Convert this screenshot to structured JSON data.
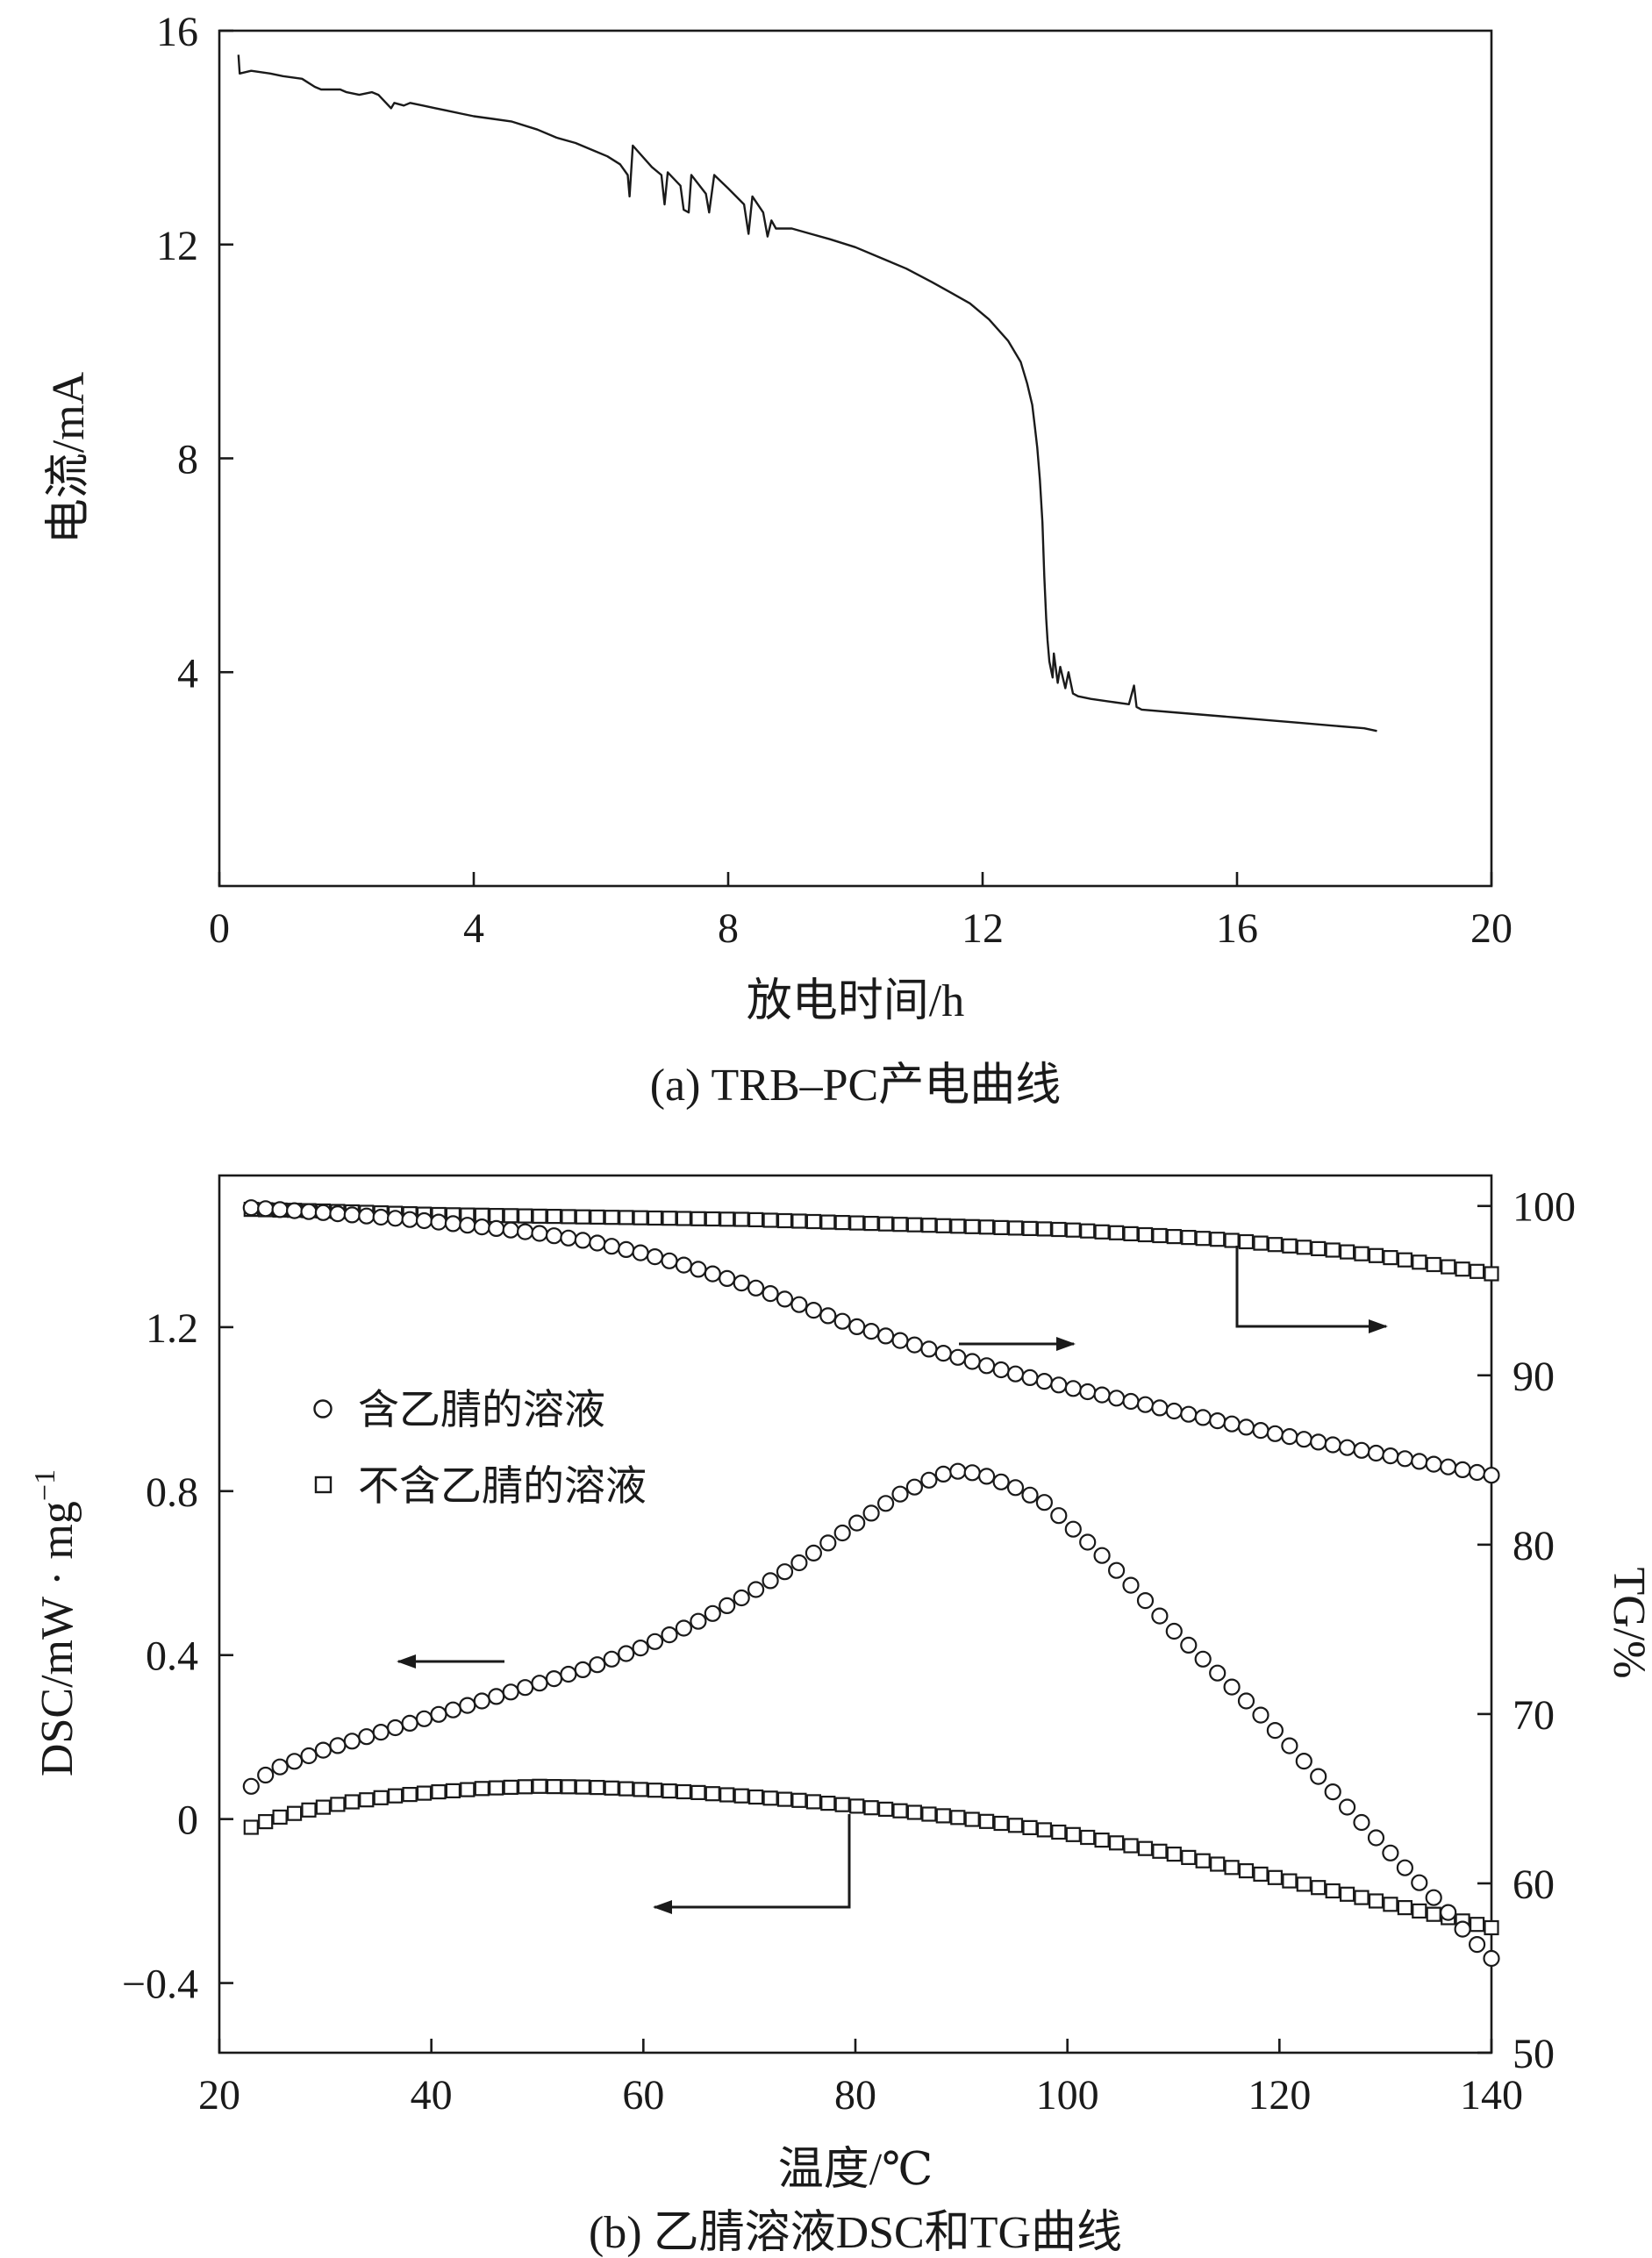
{
  "page": {
    "background": "#ffffff",
    "ink": "#1a1a1a"
  },
  "chart_data": [
    {
      "id": "a",
      "type": "line",
      "title": "(a) TRB–PC产电曲线",
      "xlabel": "放电时间/h",
      "ylabel": "电流/mA",
      "xlim": [
        0,
        20
      ],
      "ylim": [
        0,
        16
      ],
      "grid": false,
      "xticks": [
        {
          "v": 0,
          "label": "0"
        },
        {
          "v": 4,
          "label": "4"
        },
        {
          "v": 8,
          "label": "8"
        },
        {
          "v": 12,
          "label": "12"
        },
        {
          "v": 16,
          "label": "16"
        },
        {
          "v": 20,
          "label": "20"
        }
      ],
      "yticks": [
        {
          "v": 16,
          "label": "16"
        },
        {
          "v": 12,
          "label": "12"
        },
        {
          "v": 8,
          "label": "8"
        },
        {
          "v": 4,
          "label": "4"
        }
      ],
      "series": [
        {
          "name": "电流",
          "style": "line",
          "x": [
            0.3,
            0.32,
            0.5,
            0.8,
            1.0,
            1.3,
            1.5,
            1.6,
            1.9,
            2.0,
            2.2,
            2.4,
            2.5,
            2.7,
            2.75,
            2.9,
            3.0,
            3.2,
            3.4,
            3.6,
            3.8,
            4.0,
            4.3,
            4.6,
            5.0,
            5.3,
            5.6,
            5.9,
            6.1,
            6.3,
            6.42,
            6.45,
            6.5,
            6.8,
            6.95,
            7.0,
            7.05,
            7.25,
            7.3,
            7.38,
            7.42,
            7.65,
            7.7,
            7.78,
            8.0,
            8.25,
            8.32,
            8.38,
            8.55,
            8.62,
            8.68,
            8.75,
            9.0,
            9.3,
            9.6,
            10.0,
            10.4,
            10.8,
            11.2,
            11.5,
            11.8,
            12.1,
            12.4,
            12.6,
            12.7,
            12.78,
            12.82,
            12.86,
            12.9,
            12.94,
            12.97,
            13.0,
            13.02,
            13.05,
            13.1,
            13.12,
            13.18,
            13.22,
            13.3,
            13.35,
            13.42,
            13.5,
            13.7,
            14.0,
            14.3,
            14.38,
            14.42,
            14.5,
            15.0,
            15.5,
            16.0,
            16.5,
            17.0,
            17.5,
            18.0,
            18.2
          ],
          "y": [
            15.55,
            15.2,
            15.25,
            15.2,
            15.15,
            15.1,
            14.95,
            14.9,
            14.9,
            14.85,
            14.8,
            14.85,
            14.8,
            14.55,
            14.65,
            14.6,
            14.65,
            14.6,
            14.55,
            14.5,
            14.45,
            14.4,
            14.35,
            14.3,
            14.15,
            14.0,
            13.9,
            13.75,
            13.65,
            13.5,
            13.3,
            12.9,
            13.85,
            13.45,
            13.3,
            12.75,
            13.35,
            13.1,
            12.65,
            12.6,
            13.3,
            12.95,
            12.6,
            13.3,
            13.05,
            12.75,
            12.2,
            12.9,
            12.6,
            12.15,
            12.45,
            12.3,
            12.3,
            12.2,
            12.1,
            11.95,
            11.75,
            11.55,
            11.3,
            11.1,
            10.9,
            10.6,
            10.2,
            9.8,
            9.4,
            9.0,
            8.6,
            8.2,
            7.6,
            6.8,
            5.8,
            5.0,
            4.6,
            4.2,
            3.9,
            4.35,
            3.8,
            4.1,
            3.7,
            4.0,
            3.6,
            3.55,
            3.5,
            3.45,
            3.4,
            3.75,
            3.35,
            3.3,
            3.25,
            3.2,
            3.15,
            3.1,
            3.05,
            3.0,
            2.95,
            2.9
          ]
        }
      ]
    },
    {
      "id": "b",
      "type": "scatter",
      "title": "(b) 乙腈溶液DSC和TG曲线",
      "xlabel": "温度/℃",
      "ylabel_left_base": "DSC/mW · mg",
      "ylabel_left_sup": "−1",
      "ylabel_right": "TG/%",
      "xlim": [
        20,
        140
      ],
      "ylim_left": [
        -0.57,
        1.57
      ],
      "ylim_right": [
        50,
        101.8
      ],
      "grid": false,
      "legend_position": "inside upper-left",
      "xticks": [
        {
          "v": 20,
          "label": "20"
        },
        {
          "v": 40,
          "label": "40"
        },
        {
          "v": 60,
          "label": "60"
        },
        {
          "v": 80,
          "label": "80"
        },
        {
          "v": 100,
          "label": "100"
        },
        {
          "v": 120,
          "label": "120"
        },
        {
          "v": 140,
          "label": "140"
        }
      ],
      "yticks_left": [
        {
          "v": 1.2,
          "label": "1.2"
        },
        {
          "v": 0.8,
          "label": "0.8"
        },
        {
          "v": 0.4,
          "label": "0.4"
        },
        {
          "v": 0,
          "label": "0"
        },
        {
          "v": -0.4,
          "label": "−0.4"
        }
      ],
      "yticks_right": [
        {
          "v": 100,
          "label": "100"
        },
        {
          "v": 90,
          "label": "90"
        },
        {
          "v": 80,
          "label": "80"
        },
        {
          "v": 70,
          "label": "70"
        },
        {
          "v": 60,
          "label": "60"
        },
        {
          "v": 50,
          "label": "50"
        }
      ],
      "legend": [
        {
          "marker": "circle",
          "label": "含乙腈的溶液"
        },
        {
          "marker": "square",
          "label": "不含乙腈的溶液"
        }
      ],
      "series": [
        {
          "name": "TG 不含乙腈的溶液",
          "axis": "right",
          "marker": "square",
          "x": [
            23,
            30,
            40,
            50,
            60,
            70,
            80,
            90,
            100,
            105,
            110,
            115,
            120,
            125,
            130,
            135,
            140
          ],
          "y": [
            99.8,
            99.7,
            99.5,
            99.4,
            99.3,
            99.2,
            99.0,
            98.8,
            98.6,
            98.4,
            98.2,
            98.0,
            97.7,
            97.4,
            97.0,
            96.5,
            96.0
          ]
        },
        {
          "name": "TG 含乙腈的溶液",
          "axis": "right",
          "marker": "circle",
          "x": [
            23,
            30,
            40,
            50,
            55,
            60,
            65,
            70,
            75,
            80,
            85,
            90,
            95,
            100,
            105,
            110,
            115,
            120,
            125,
            130,
            135,
            140
          ],
          "y": [
            99.9,
            99.6,
            99.1,
            98.4,
            97.9,
            97.2,
            96.3,
            95.3,
            94.1,
            92.9,
            91.9,
            91.0,
            90.1,
            89.3,
            88.6,
            87.9,
            87.2,
            86.5,
            85.9,
            85.3,
            84.7,
            84.1
          ]
        },
        {
          "name": "DSC 不含乙腈的溶液",
          "axis": "left",
          "marker": "square",
          "x": [
            23,
            25,
            28,
            32,
            36,
            40,
            45,
            50,
            55,
            60,
            65,
            70,
            75,
            80,
            85,
            90,
            95,
            100,
            105,
            110,
            115,
            120,
            125,
            130,
            135,
            140
          ],
          "y": [
            -0.02,
            0.0,
            0.02,
            0.04,
            0.055,
            0.065,
            0.075,
            0.08,
            0.078,
            0.072,
            0.065,
            0.055,
            0.045,
            0.032,
            0.018,
            0.003,
            -0.015,
            -0.035,
            -0.06,
            -0.085,
            -0.115,
            -0.145,
            -0.175,
            -0.205,
            -0.235,
            -0.265
          ]
        },
        {
          "name": "DSC 含乙腈的溶液",
          "axis": "left",
          "marker": "circle",
          "x": [
            23,
            25,
            30,
            35,
            40,
            45,
            50,
            55,
            60,
            65,
            70,
            75,
            80,
            84,
            88,
            90,
            92,
            95,
            98,
            100,
            103,
            106,
            110,
            114,
            118,
            122,
            126,
            130,
            133,
            136,
            138,
            140
          ],
          "y": [
            0.08,
            0.12,
            0.17,
            0.21,
            0.25,
            0.29,
            0.33,
            0.37,
            0.42,
            0.48,
            0.55,
            0.63,
            0.72,
            0.79,
            0.84,
            0.85,
            0.84,
            0.81,
            0.77,
            0.72,
            0.65,
            0.57,
            0.46,
            0.36,
            0.26,
            0.15,
            0.04,
            -0.07,
            -0.15,
            -0.23,
            -0.29,
            -0.34
          ]
        }
      ]
    }
  ]
}
